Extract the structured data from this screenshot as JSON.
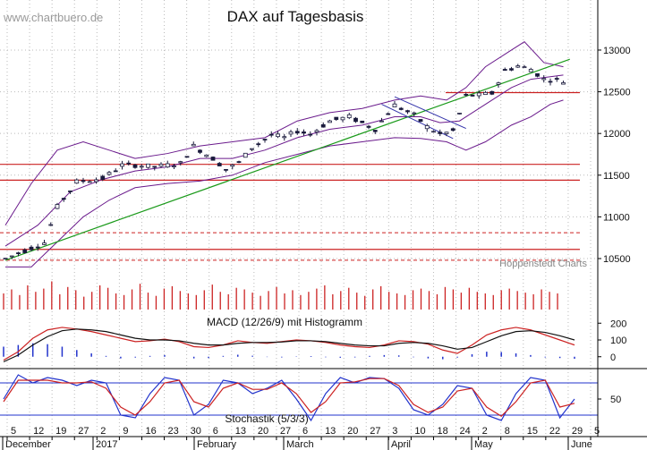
{
  "watermark": "www.chartbuero.de",
  "chart_data": [
    {
      "type": "candlestick",
      "title": "DAX auf Tagesbasis",
      "credit": "Hoppenstedt Charts",
      "y_ticks": [
        "13000",
        "12500",
        "12000",
        "11500",
        "11000",
        "10500"
      ],
      "ylim": [
        10350,
        13300
      ],
      "x_ticks": [
        "5",
        "12",
        "19",
        "27",
        "2",
        "9",
        "16",
        "23",
        "30",
        "6",
        "13",
        "20",
        "27",
        "6",
        "13",
        "20",
        "27",
        "3",
        "10",
        "18",
        "24",
        "2",
        "8",
        "15",
        "22",
        "29",
        "5"
      ],
      "month_labels": [
        "December",
        "2017",
        "February",
        "March",
        "April",
        "May",
        "June"
      ],
      "period": [
        "2016-12-01",
        "2017-06-02"
      ],
      "ohlc_path": [
        [
          0,
          10500
        ],
        [
          6,
          10690
        ],
        [
          8,
          11120
        ],
        [
          11,
          11420
        ],
        [
          14,
          11450
        ],
        [
          15,
          11460
        ],
        [
          18,
          11620
        ],
        [
          20,
          11620
        ],
        [
          23,
          11600
        ],
        [
          27,
          11640
        ],
        [
          29,
          11850
        ],
        [
          32,
          11700
        ],
        [
          34,
          11570
        ],
        [
          36,
          11650
        ],
        [
          38,
          11830
        ],
        [
          41,
          11980
        ],
        [
          43,
          11950
        ],
        [
          45,
          12030
        ],
        [
          47,
          11990
        ],
        [
          50,
          12150
        ],
        [
          53,
          12200
        ],
        [
          57,
          12050
        ],
        [
          60,
          12340
        ],
        [
          63,
          12220
        ],
        [
          65,
          12080
        ],
        [
          67,
          11990
        ],
        [
          69,
          12030
        ],
        [
          71,
          12450
        ],
        [
          73,
          12460
        ],
        [
          75,
          12480
        ],
        [
          77,
          12750
        ],
        [
          79,
          12810
        ],
        [
          81,
          12770
        ],
        [
          83,
          12650
        ],
        [
          85,
          12640
        ],
        [
          86,
          12620
        ]
      ],
      "support_resistance_red": [
        11630,
        11440,
        10610,
        12490
      ],
      "dashed_red": [
        10810,
        10480
      ],
      "green_trendline": [
        [
          0,
          10480
        ],
        [
          87,
          12890
        ]
      ],
      "bollinger": {
        "mid": [
          [
            0,
            10650
          ],
          [
            5,
            10900
          ],
          [
            10,
            11300
          ],
          [
            15,
            11450
          ],
          [
            20,
            11550
          ],
          [
            25,
            11600
          ],
          [
            30,
            11700
          ],
          [
            35,
            11700
          ],
          [
            40,
            11800
          ],
          [
            45,
            11950
          ],
          [
            50,
            12050
          ],
          [
            55,
            12100
          ],
          [
            60,
            12200
          ],
          [
            64,
            12200
          ],
          [
            67,
            12130
          ],
          [
            70,
            12150
          ],
          [
            74,
            12350
          ],
          [
            78,
            12550
          ],
          [
            81,
            12650
          ],
          [
            84,
            12680
          ],
          [
            86,
            12700
          ]
        ],
        "upper": [
          [
            0,
            10900
          ],
          [
            4,
            11400
          ],
          [
            8,
            11800
          ],
          [
            12,
            11900
          ],
          [
            16,
            11800
          ],
          [
            20,
            11700
          ],
          [
            25,
            11760
          ],
          [
            30,
            11850
          ],
          [
            35,
            11900
          ],
          [
            40,
            11950
          ],
          [
            45,
            12150
          ],
          [
            50,
            12250
          ],
          [
            55,
            12300
          ],
          [
            60,
            12400
          ],
          [
            64,
            12450
          ],
          [
            68,
            12400
          ],
          [
            71,
            12550
          ],
          [
            74,
            12800
          ],
          [
            78,
            13000
          ],
          [
            80,
            13100
          ],
          [
            83,
            12850
          ],
          [
            86,
            12800
          ]
        ],
        "lower": [
          [
            0,
            10400
          ],
          [
            4,
            10400
          ],
          [
            8,
            10700
          ],
          [
            12,
            11000
          ],
          [
            16,
            11200
          ],
          [
            20,
            11350
          ],
          [
            25,
            11400
          ],
          [
            30,
            11430
          ],
          [
            35,
            11500
          ],
          [
            40,
            11650
          ],
          [
            45,
            11750
          ],
          [
            50,
            11850
          ],
          [
            55,
            11900
          ],
          [
            60,
            11950
          ],
          [
            64,
            11940
          ],
          [
            68,
            11900
          ],
          [
            71,
            11800
          ],
          [
            74,
            11900
          ],
          [
            78,
            12100
          ],
          [
            81,
            12200
          ],
          [
            84,
            12350
          ],
          [
            86,
            12400
          ]
        ]
      },
      "channel": [
        [
          [
            60,
            12440
          ],
          [
            71,
            12060
          ]
        ],
        [
          [
            58,
            12350
          ],
          [
            69,
            11940
          ]
        ]
      ],
      "colors": {
        "candles": "#1a1a3c",
        "bollinger": "#6a1a8c",
        "trend": "#1a9a1a",
        "levels": "#cc2222",
        "channel": "#3333aa"
      }
    },
    {
      "type": "bar",
      "title": "",
      "series": [
        {
          "name": "Volume",
          "values": [
            20,
            25,
            18,
            30,
            22,
            26,
            35,
            19,
            28,
            24,
            16,
            22,
            30,
            27,
            20,
            18,
            25,
            32,
            21,
            17,
            26,
            29,
            23,
            20,
            18,
            24,
            31,
            22,
            19,
            27,
            25,
            21,
            17,
            23,
            28,
            20,
            24,
            18,
            22,
            26,
            30,
            19,
            23,
            27,
            21,
            17,
            25,
            29,
            22,
            20,
            18,
            24,
            26,
            23,
            19,
            28,
            25,
            21,
            27,
            22,
            20,
            18,
            24,
            26,
            23,
            21,
            19,
            25,
            22,
            20
          ]
        }
      ],
      "colors": {
        "bar": "#cc2222"
      }
    },
    {
      "type": "line",
      "title": "MACD (12/26/9) mit Histogramm",
      "y_ticks": [
        "200",
        "100",
        "0"
      ],
      "ylim": [
        -60,
        260
      ],
      "series": [
        {
          "name": "MACD",
          "values": [
            -20,
            30,
            110,
            160,
            175,
            165,
            150,
            130,
            110,
            90,
            95,
            105,
            90,
            60,
            55,
            70,
            95,
            85,
            80,
            90,
            100,
            95,
            85,
            70,
            60,
            55,
            70,
            95,
            90,
            75,
            40,
            20,
            70,
            130,
            160,
            175,
            160,
            130,
            100,
            70
          ]
        },
        {
          "name": "Signal",
          "values": [
            -30,
            10,
            70,
            120,
            155,
            165,
            160,
            150,
            130,
            110,
            100,
            100,
            95,
            80,
            70,
            70,
            80,
            85,
            85,
            88,
            95,
            95,
            90,
            80,
            70,
            65,
            65,
            80,
            85,
            80,
            65,
            45,
            55,
            90,
            125,
            150,
            155,
            145,
            125,
            100
          ]
        }
      ],
      "histogram": [
        60,
        70,
        80,
        75,
        60,
        40,
        20,
        5,
        -10,
        -5,
        5,
        10,
        0,
        -10,
        -8,
        5,
        12,
        6,
        -2,
        -4,
        2,
        4,
        -3,
        -6,
        -4,
        5,
        10,
        8,
        -3,
        -10,
        -15,
        -5,
        15,
        30,
        28,
        20,
        10,
        -4,
        -8,
        -12
      ],
      "colors": {
        "macd": "#cc2222",
        "signal": "#111111",
        "hist": "#2233cc"
      }
    },
    {
      "type": "line",
      "title": "Stochastik (5/3/3)",
      "y_ticks": [
        "50"
      ],
      "ylim": [
        0,
        100
      ],
      "levels": [
        80,
        20
      ],
      "series": [
        {
          "name": "%K",
          "values": [
            50,
            95,
            80,
            90,
            85,
            75,
            85,
            80,
            20,
            15,
            60,
            90,
            85,
            20,
            40,
            85,
            80,
            60,
            70,
            85,
            50,
            10,
            60,
            90,
            80,
            90,
            88,
            70,
            30,
            20,
            40,
            75,
            70,
            20,
            10,
            60,
            90,
            85,
            15,
            50
          ]
        },
        {
          "name": "%D",
          "values": [
            45,
            85,
            85,
            85,
            80,
            80,
            82,
            70,
            35,
            20,
            45,
            80,
            85,
            45,
            35,
            70,
            80,
            68,
            68,
            80,
            60,
            25,
            45,
            80,
            82,
            88,
            88,
            75,
            40,
            25,
            35,
            65,
            70,
            35,
            18,
            45,
            80,
            85,
            35,
            42
          ]
        }
      ],
      "colors": {
        "k": "#2233cc",
        "d": "#cc2222"
      }
    }
  ]
}
